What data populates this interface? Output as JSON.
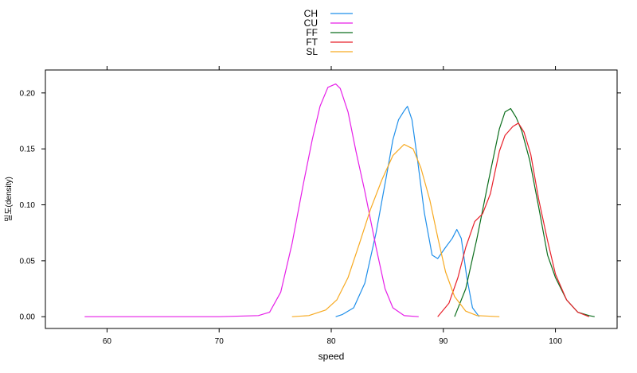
{
  "chart_data": {
    "type": "line",
    "title": "",
    "xlabel": "speed",
    "ylabel": "밀도(density)",
    "xlim": [
      54.5,
      105.5
    ],
    "ylim": [
      -0.0105,
      0.2205
    ],
    "xticks": [
      60,
      70,
      80,
      90,
      100
    ],
    "yticks": [
      0.0,
      0.05,
      0.1,
      0.15,
      0.2
    ],
    "ytick_labels": [
      "0.00",
      "0.05",
      "0.10",
      "0.15",
      "0.20"
    ],
    "legend_position": "top-center",
    "grid": false,
    "series": [
      {
        "name": "CH",
        "color": "#1f8fea",
        "x": [
          80.4,
          81.0,
          82.0,
          83.0,
          84.0,
          85.0,
          85.5,
          86.0,
          86.5,
          86.8,
          87.2,
          87.7,
          88.3,
          89.0,
          89.5,
          90.2,
          90.8,
          91.2,
          91.6,
          92.1,
          92.6,
          93.2
        ],
        "y": [
          0.0,
          0.002,
          0.008,
          0.03,
          0.075,
          0.13,
          0.158,
          0.176,
          0.184,
          0.188,
          0.176,
          0.14,
          0.093,
          0.055,
          0.052,
          0.062,
          0.07,
          0.078,
          0.07,
          0.035,
          0.008,
          0.0
        ]
      },
      {
        "name": "CU",
        "color": "#e61fe8",
        "x": [
          58.0,
          70.0,
          73.5,
          74.5,
          75.5,
          76.5,
          77.5,
          78.3,
          79.0,
          79.7,
          80.4,
          80.8,
          81.5,
          82.2,
          83.0,
          84.0,
          84.8,
          85.5,
          86.5,
          87.8
        ],
        "y": [
          0.0,
          0.0,
          0.001,
          0.004,
          0.022,
          0.065,
          0.118,
          0.158,
          0.188,
          0.205,
          0.208,
          0.204,
          0.183,
          0.148,
          0.112,
          0.062,
          0.025,
          0.008,
          0.001,
          0.0
        ]
      },
      {
        "name": "FF",
        "color": "#0c6e1d",
        "x": [
          91.0,
          92.0,
          93.0,
          94.0,
          95.0,
          95.5,
          96.0,
          96.5,
          97.0,
          97.7,
          98.5,
          99.3,
          100.0,
          101.0,
          102.0,
          103.0,
          103.5
        ],
        "y": [
          0.0,
          0.025,
          0.07,
          0.12,
          0.168,
          0.183,
          0.186,
          0.178,
          0.166,
          0.14,
          0.098,
          0.055,
          0.035,
          0.015,
          0.004,
          0.001,
          0.0
        ]
      },
      {
        "name": "FT",
        "color": "#e8202a",
        "x": [
          89.5,
          90.5,
          91.3,
          92.0,
          92.8,
          93.5,
          94.2,
          95.0,
          95.5,
          96.2,
          96.7,
          97.2,
          97.8,
          98.5,
          99.3,
          100.0,
          101.0,
          102.0,
          103.0
        ],
        "y": [
          0.0,
          0.012,
          0.035,
          0.062,
          0.085,
          0.092,
          0.11,
          0.148,
          0.162,
          0.17,
          0.173,
          0.165,
          0.145,
          0.105,
          0.068,
          0.038,
          0.015,
          0.004,
          0.0
        ]
      },
      {
        "name": "SL",
        "color": "#f7aa22",
        "x": [
          76.5,
          78.0,
          79.5,
          80.5,
          81.5,
          82.5,
          83.5,
          84.5,
          85.5,
          86.5,
          87.3,
          88.0,
          88.8,
          89.5,
          90.2,
          91.0,
          92.0,
          93.0,
          95.0
        ],
        "y": [
          0.0,
          0.001,
          0.006,
          0.015,
          0.035,
          0.065,
          0.096,
          0.122,
          0.144,
          0.154,
          0.15,
          0.133,
          0.104,
          0.071,
          0.04,
          0.018,
          0.005,
          0.001,
          0.0
        ]
      }
    ]
  }
}
